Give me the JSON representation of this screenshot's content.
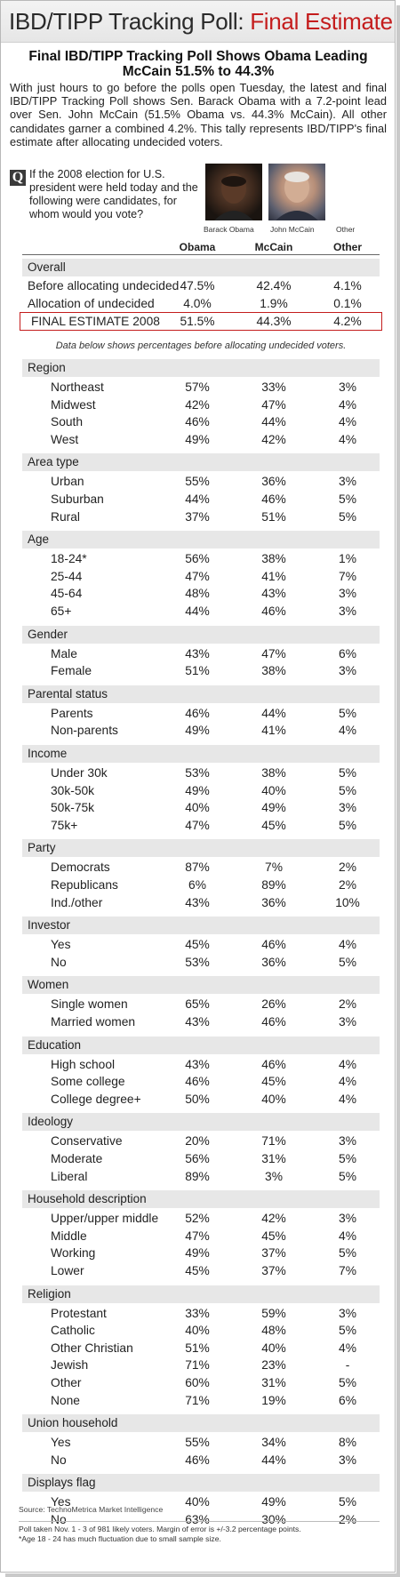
{
  "title": {
    "prefix": "IBD/TIPP  Tracking Poll:",
    "highlight": "Final Estimate"
  },
  "headline": "Final IBD/TIPP Tracking Poll Shows Obama Leading McCain 51.5% to 44.3%",
  "intro": "With just hours to go before the polls open Tuesday, the latest and final IBD/TIPP Tracking Poll shows Sen. Barack Obama with a 7.2-point lead over Sen. John McCain (51.5% Obama vs. 44.3% McCain). All other candidates garner a combined 4.2%. This tally represents IBD/TIPP's final estimate after allocating undecided voters.",
  "question": {
    "badge": "Q",
    "text": "If the 2008 election for U.S. president were held today and the following were candidates, for whom would you vote?"
  },
  "captions": {
    "obama": "Barack Obama",
    "mccain": "John McCain",
    "other": "Other"
  },
  "columns": [
    "Obama",
    "McCain",
    "Other"
  ],
  "overall": {
    "label": "Overall",
    "rows": [
      {
        "label": "Before allocating undecided",
        "values": [
          "47.5%",
          "42.4%",
          "4.1%"
        ]
      },
      {
        "label": "Allocation of undecided",
        "values": [
          "4.0%",
          "1.9%",
          "0.1%"
        ]
      },
      {
        "label": "FINAL ESTIMATE 2008",
        "values": [
          "51.5%",
          "44.3%",
          "4.2%"
        ]
      }
    ]
  },
  "note": "Data below shows percentages before allocating undecided voters.",
  "sections": [
    {
      "label": "Region",
      "rows": [
        {
          "label": "Northeast",
          "values": [
            "57%",
            "33%",
            "3%"
          ]
        },
        {
          "label": "Midwest",
          "values": [
            "42%",
            "47%",
            "4%"
          ]
        },
        {
          "label": "South",
          "values": [
            "46%",
            "44%",
            "4%"
          ]
        },
        {
          "label": "West",
          "values": [
            "49%",
            "42%",
            "4%"
          ]
        }
      ]
    },
    {
      "label": "Area type",
      "rows": [
        {
          "label": "Urban",
          "values": [
            "55%",
            "36%",
            "3%"
          ]
        },
        {
          "label": "Suburban",
          "values": [
            "44%",
            "46%",
            "5%"
          ]
        },
        {
          "label": "Rural",
          "values": [
            "37%",
            "51%",
            "5%"
          ]
        }
      ]
    },
    {
      "label": "Age",
      "rows": [
        {
          "label": "18-24*",
          "values": [
            "56%",
            "38%",
            "1%"
          ]
        },
        {
          "label": "25-44",
          "values": [
            "47%",
            "41%",
            "7%"
          ]
        },
        {
          "label": "45-64",
          "values": [
            "48%",
            "43%",
            "3%"
          ]
        },
        {
          "label": "65+",
          "values": [
            "44%",
            "46%",
            "3%"
          ]
        }
      ]
    },
    {
      "label": "Gender",
      "rows": [
        {
          "label": "Male",
          "values": [
            "43%",
            "47%",
            "6%"
          ]
        },
        {
          "label": "Female",
          "values": [
            "51%",
            "38%",
            "3%"
          ]
        }
      ]
    },
    {
      "label": "Parental status",
      "rows": [
        {
          "label": "Parents",
          "values": [
            "46%",
            "44%",
            "5%"
          ]
        },
        {
          "label": "Non-parents",
          "values": [
            "49%",
            "41%",
            "4%"
          ]
        }
      ]
    },
    {
      "label": "Income",
      "rows": [
        {
          "label": "Under 30k",
          "values": [
            "53%",
            "38%",
            "5%"
          ]
        },
        {
          "label": "30k-50k",
          "values": [
            "49%",
            "40%",
            "5%"
          ]
        },
        {
          "label": "50k-75k",
          "values": [
            "40%",
            "49%",
            "3%"
          ]
        },
        {
          "label": "75k+",
          "values": [
            "47%",
            "45%",
            "5%"
          ]
        }
      ]
    },
    {
      "label": "Party",
      "rows": [
        {
          "label": "Democrats",
          "values": [
            "87%",
            "7%",
            "2%"
          ]
        },
        {
          "label": "Republicans",
          "values": [
            "6%",
            "89%",
            "2%"
          ]
        },
        {
          "label": "Ind./other",
          "values": [
            "43%",
            "36%",
            "10%"
          ]
        }
      ]
    },
    {
      "label": "Investor",
      "rows": [
        {
          "label": "Yes",
          "values": [
            "45%",
            "46%",
            "4%"
          ]
        },
        {
          "label": "No",
          "values": [
            "53%",
            "36%",
            "5%"
          ]
        }
      ]
    },
    {
      "label": "Women",
      "rows": [
        {
          "label": "Single women",
          "values": [
            "65%",
            "26%",
            "2%"
          ]
        },
        {
          "label": "Married women",
          "values": [
            "43%",
            "46%",
            "3%"
          ]
        }
      ]
    },
    {
      "label": "Education",
      "rows": [
        {
          "label": "High school",
          "values": [
            "43%",
            "46%",
            "4%"
          ]
        },
        {
          "label": "Some college",
          "values": [
            "46%",
            "45%",
            "4%"
          ]
        },
        {
          "label": "College degree+",
          "values": [
            "50%",
            "40%",
            "4%"
          ]
        }
      ]
    },
    {
      "label": "Ideology",
      "rows": [
        {
          "label": "Conservative",
          "values": [
            "20%",
            "71%",
            "3%"
          ]
        },
        {
          "label": "Moderate",
          "values": [
            "56%",
            "31%",
            "5%"
          ]
        },
        {
          "label": "Liberal",
          "values": [
            "89%",
            "3%",
            "5%"
          ]
        }
      ]
    },
    {
      "label": "Household description",
      "rows": [
        {
          "label": "Upper/upper middle",
          "values": [
            "52%",
            "42%",
            "3%"
          ]
        },
        {
          "label": "Middle",
          "values": [
            "47%",
            "45%",
            "4%"
          ]
        },
        {
          "label": "Working",
          "values": [
            "49%",
            "37%",
            "5%"
          ]
        },
        {
          "label": "Lower",
          "values": [
            "45%",
            "37%",
            "7%"
          ]
        }
      ]
    },
    {
      "label": "Religion",
      "rows": [
        {
          "label": "Protestant",
          "values": [
            "33%",
            "59%",
            "3%"
          ]
        },
        {
          "label": "Catholic",
          "values": [
            "40%",
            "48%",
            "5%"
          ]
        },
        {
          "label": "Other Christian",
          "values": [
            "51%",
            "40%",
            "4%"
          ]
        },
        {
          "label": "Jewish",
          "values": [
            "71%",
            "23%",
            "-"
          ]
        },
        {
          "label": "Other",
          "values": [
            "60%",
            "31%",
            "5%"
          ]
        },
        {
          "label": "None",
          "values": [
            "71%",
            "19%",
            "6%"
          ]
        }
      ]
    },
    {
      "label": "Union household",
      "rows": [
        {
          "label": "Yes",
          "values": [
            "55%",
            "34%",
            "8%"
          ]
        },
        {
          "label": "No",
          "values": [
            "46%",
            "44%",
            "3%"
          ]
        }
      ]
    },
    {
      "label": "Displays flag",
      "rows": [
        {
          "label": "Yes",
          "values": [
            "40%",
            "49%",
            "5%"
          ]
        },
        {
          "label": "No",
          "values": [
            "63%",
            "30%",
            "2%"
          ]
        }
      ]
    }
  ],
  "source": "Source: TechnoMetrica Market Intelligence",
  "footnotes": [
    "Poll taken Nov. 1 - 3 of 981 likely voters. Margin of error is +/-3.2 percentage points.",
    "*Age 18 - 24 has much fluctuation due to small sample size."
  ],
  "colors": {
    "accent_red": "#c41d1d",
    "section_band": "#e7e7e7"
  }
}
